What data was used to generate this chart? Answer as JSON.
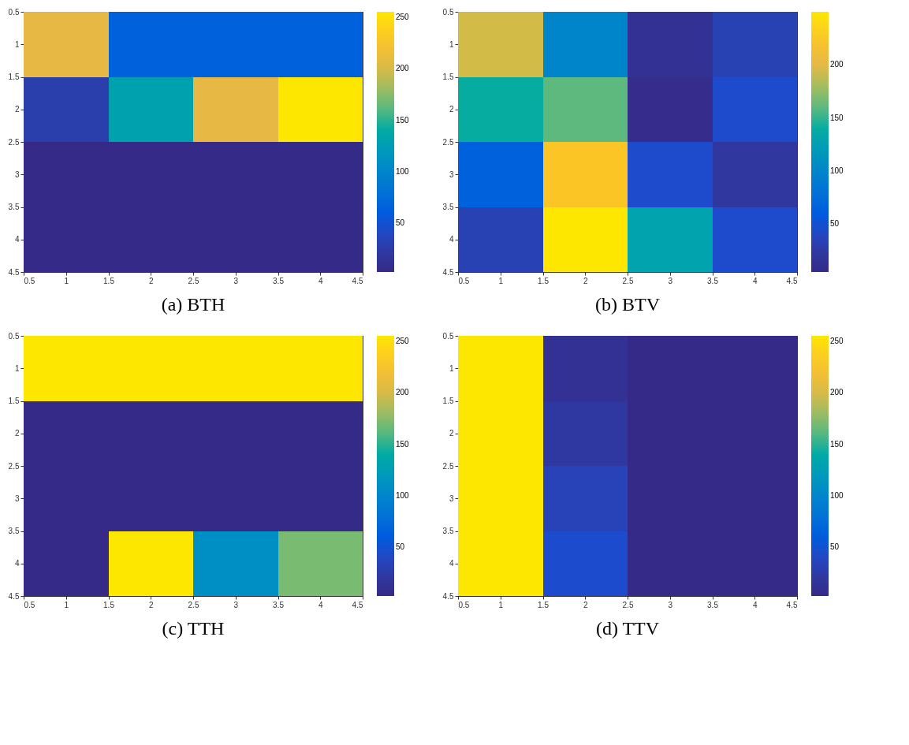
{
  "chart_data": [
    {
      "type": "heatmap",
      "title": "(a) BTH",
      "xlim": [
        0.5,
        4.5
      ],
      "ylim": [
        4.5,
        0.5
      ],
      "xticks": [
        0.5,
        1,
        1.5,
        2,
        2.5,
        3,
        3.5,
        4,
        4.5
      ],
      "yticks": [
        0.5,
        1,
        1.5,
        2,
        2.5,
        3,
        3.5,
        4,
        4.5
      ],
      "clim": [
        3,
        255
      ],
      "cticks": [
        50,
        100,
        150,
        200,
        250
      ],
      "grid": false,
      "cells": [
        [
          205,
          65,
          65,
          65
        ],
        [
          30,
          130,
          205,
          255
        ],
        [
          3,
          3,
          3,
          3
        ],
        [
          3,
          3,
          3,
          3
        ]
      ]
    },
    {
      "type": "heatmap",
      "title": "(b) BTV",
      "xlim": [
        0.5,
        4.5
      ],
      "ylim": [
        4.5,
        0.5
      ],
      "xticks": [
        0.5,
        1,
        1.5,
        2,
        2.5,
        3,
        3.5,
        4,
        4.5
      ],
      "yticks": [
        0.5,
        1,
        1.5,
        2,
        2.5,
        3,
        3.5,
        4,
        4.5
      ],
      "clim": [
        5,
        250
      ],
      "cticks": [
        50,
        100,
        150,
        200
      ],
      "grid": false,
      "cells": [
        [
          195,
          100,
          15,
          35
        ],
        [
          140,
          160,
          8,
          45
        ],
        [
          65,
          225,
          45,
          22
        ],
        [
          35,
          250,
          130,
          45
        ]
      ]
    },
    {
      "type": "heatmap",
      "title": "(c) TTH",
      "xlim": [
        0.5,
        4.5
      ],
      "ylim": [
        4.5,
        0.5
      ],
      "xticks": [
        0.5,
        1,
        1.5,
        2,
        2.5,
        3,
        3.5,
        4,
        4.5
      ],
      "yticks": [
        0.5,
        1,
        1.5,
        2,
        2.5,
        3,
        3.5,
        4,
        4.5
      ],
      "clim": [
        3,
        255
      ],
      "cticks": [
        50,
        100,
        150,
        200,
        250
      ],
      "grid": false,
      "cells": [
        [
          255,
          255,
          255,
          255
        ],
        [
          3,
          3,
          3,
          3
        ],
        [
          3,
          3,
          3,
          3
        ],
        [
          3,
          255,
          110,
          170
        ]
      ]
    },
    {
      "type": "heatmap",
      "title": "(d) TTV",
      "xlim": [
        0.5,
        4.5
      ],
      "ylim": [
        4.5,
        0.5
      ],
      "xticks": [
        0.5,
        1,
        1.5,
        2,
        2.5,
        3,
        3.5,
        4,
        4.5
      ],
      "yticks": [
        0.5,
        1,
        1.5,
        2,
        2.5,
        3,
        3.5,
        4,
        4.5
      ],
      "clim": [
        3,
        255
      ],
      "cticks": [
        50,
        100,
        150,
        200,
        250
      ],
      "grid": false,
      "cells": [
        [
          255,
          12,
          3,
          3
        ],
        [
          255,
          22,
          3,
          3
        ],
        [
          255,
          35,
          3,
          3
        ],
        [
          255,
          45,
          3,
          3
        ]
      ]
    }
  ]
}
